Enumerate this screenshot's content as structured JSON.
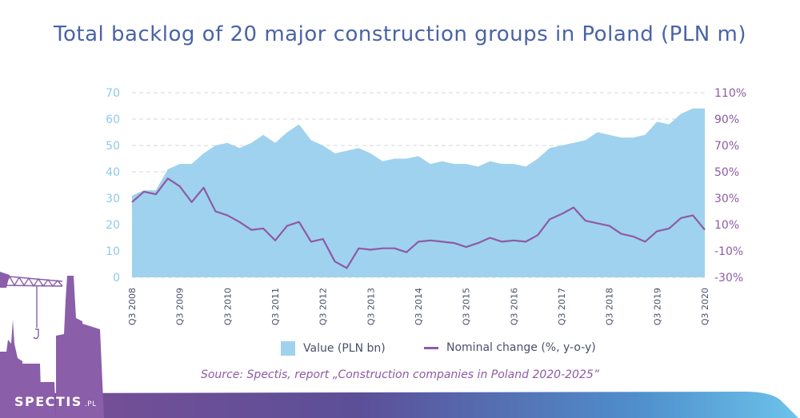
{
  "title": "Total backlog of 20 major construction groups in Poland (PLN m)",
  "source": "Source: Spectis, report „Construction companies in Poland 2020-2025”",
  "brand": {
    "name": "SPECTIS",
    "suffix": ".PL"
  },
  "colors": {
    "area": "#9fd2ee",
    "line": "#8e5aa5",
    "left_axis": "#8fc9e8",
    "right_axis": "#8e5aa5",
    "title": "#4a63a6"
  },
  "chart_data": {
    "type": "area",
    "title": "Total backlog of 20 major construction groups in Poland (PLN m)",
    "x_tick_labels": [
      "Q3 2008",
      "Q3 2009",
      "Q3 2010",
      "Q3 2011",
      "Q3 2012",
      "Q3 2013",
      "Q3 2014",
      "Q3 2015",
      "Q3 2016",
      "Q3 2017",
      "Q3 2018",
      "Q3 2019",
      "Q3 2020"
    ],
    "y_ticks": [
      "0",
      "10",
      "20",
      "30",
      "40",
      "50",
      "60",
      "70"
    ],
    "y2_ticks": [
      "-30%",
      "-10%",
      "10%",
      "30%",
      "50%",
      "70%",
      "90%",
      "110%"
    ],
    "ylim": [
      0,
      70
    ],
    "y2lim": [
      -30,
      110
    ],
    "grid": "horizontal dashed",
    "legend_position": "bottom",
    "series": [
      {
        "name": "Value (PLN bn)",
        "type": "area",
        "axis": "left",
        "values": [
          31,
          33,
          33,
          41,
          43,
          43,
          47,
          50,
          51,
          49,
          51,
          54,
          51,
          55,
          58,
          52,
          50,
          47,
          48,
          49,
          47,
          44,
          45,
          45,
          46,
          43,
          44,
          43,
          43,
          42,
          44,
          43,
          43,
          42,
          45,
          49,
          50,
          51,
          52,
          55,
          54,
          53,
          53,
          54,
          59,
          58,
          62,
          64,
          64
        ]
      },
      {
        "name": "Nominal change (%, y-o-y)",
        "type": "line",
        "axis": "right",
        "values": [
          27,
          35,
          33,
          45,
          39,
          27,
          38,
          20,
          17,
          12,
          6,
          7,
          -2,
          9,
          12,
          -3,
          -1,
          -18,
          -23,
          -8,
          -9,
          -8,
          -8,
          -11,
          -3,
          -2,
          -3,
          -4,
          -7,
          -4,
          0,
          -3,
          -2,
          -3,
          2,
          14,
          18,
          23,
          13,
          11,
          9,
          3,
          1,
          -3,
          5,
          7,
          15,
          17,
          6
        ]
      }
    ]
  }
}
